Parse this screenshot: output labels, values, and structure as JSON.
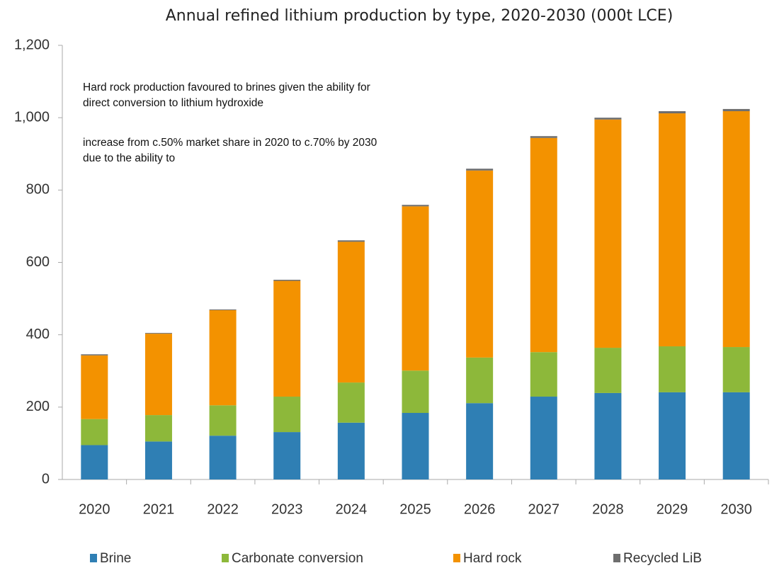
{
  "chart_data": {
    "type": "stacked_bar",
    "title": "Annual refined lithium production by type, 2020-2030 (000t LCE)",
    "annotations": [
      "Hard rock production favoured to brines given the ability for",
      "direct conversion to lithium hydroxide",
      "increase from c.50% market share in 2020 to c.70% by 2030",
      "due to the ability to"
    ],
    "categories": [
      "2020",
      "2021",
      "2022",
      "2023",
      "2024",
      "2025",
      "2026",
      "2027",
      "2028",
      "2029",
      "2030"
    ],
    "series": [
      {
        "name": "Brine",
        "color": "#2f7fb4",
        "values": [
          95,
          105,
          121,
          131,
          157,
          184,
          211,
          229,
          239,
          241,
          241
        ]
      },
      {
        "name": "Carbonate conversion",
        "color": "#8db83a",
        "values": [
          72,
          73,
          84,
          98,
          111,
          117,
          126,
          123,
          125,
          127,
          125
        ]
      },
      {
        "name": "Hard rock",
        "color": "#f39200",
        "values": [
          176,
          225,
          263,
          320,
          389,
          454,
          517,
          592,
          631,
          644,
          652
        ]
      },
      {
        "name": "Recycled LiB",
        "color": "#6e6e6e",
        "values": [
          3,
          2,
          2,
          3,
          4,
          4,
          5,
          5,
          5,
          6,
          6
        ]
      }
    ],
    "ylim": [
      0,
      1200
    ],
    "yticks": [
      0,
      200,
      400,
      600,
      800,
      {
        "value": 1000,
        "label": "1,000"
      },
      {
        "value": 1200,
        "label": "1,200"
      }
    ]
  }
}
